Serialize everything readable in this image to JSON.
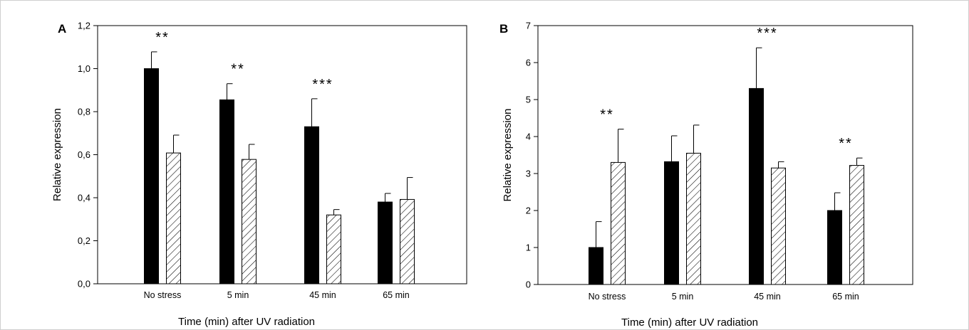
{
  "chart_data": [
    {
      "panel": "A",
      "type": "bar",
      "categories": [
        "No stress",
        "5 min",
        "45 min",
        "65 min"
      ],
      "series": [
        {
          "fill": "solid",
          "values": [
            1.0,
            0.855,
            0.73,
            0.38
          ],
          "errors": [
            0.078,
            0.075,
            0.13,
            0.04
          ]
        },
        {
          "fill": "hatched",
          "values": [
            0.608,
            0.578,
            0.32,
            0.392
          ],
          "errors": [
            0.083,
            0.07,
            0.025,
            0.102
          ]
        }
      ],
      "significance": [
        "**",
        "**",
        "***",
        ""
      ],
      "xlabel": "Time (min) after UV radiation",
      "ylabel": "Relative expression",
      "ylim": [
        0,
        1.2
      ],
      "yticks": [
        "0,0",
        "0,2",
        "0,4",
        "0,6",
        "0,8",
        "1,0",
        "1,2"
      ]
    },
    {
      "panel": "B",
      "type": "bar",
      "categories": [
        "No stress",
        "5 min",
        "45 min",
        "65 min"
      ],
      "series": [
        {
          "fill": "solid",
          "values": [
            1.0,
            3.32,
            5.3,
            2.0
          ],
          "errors": [
            0.7,
            0.7,
            1.1,
            0.48
          ]
        },
        {
          "fill": "hatched",
          "values": [
            3.3,
            3.55,
            3.15,
            3.22
          ],
          "errors": [
            0.9,
            0.76,
            0.17,
            0.2
          ]
        }
      ],
      "significance": [
        "**",
        "",
        "***",
        "**"
      ],
      "xlabel": "Time (min) after UV radiation",
      "ylabel": "Relative expression",
      "ylim": [
        0,
        7
      ],
      "yticks": [
        "0",
        "1",
        "2",
        "3",
        "4",
        "5",
        "6",
        "7"
      ]
    }
  ]
}
